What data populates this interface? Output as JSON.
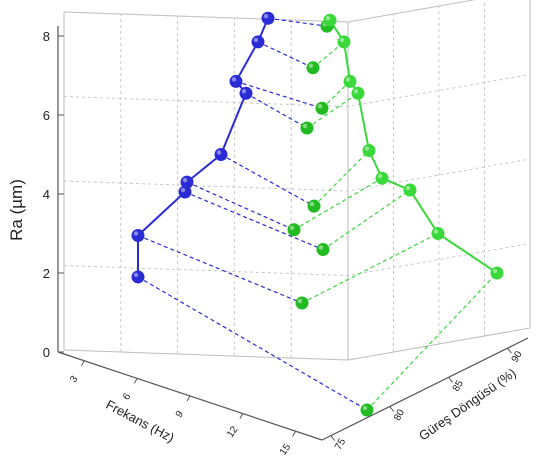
{
  "chart_data": {
    "type": "scatter3d",
    "zlabel": "Ra (µm)",
    "xlabel": "Frekans (Hz)",
    "ylabel": "Güreş Döngüsü (%)",
    "zlim": [
      0,
      8
    ],
    "z_ticks": [
      "0",
      "2",
      "4",
      "6",
      "8"
    ],
    "x_ticks": [
      "3",
      "6",
      "9",
      "12",
      "15"
    ],
    "y_ticks": [
      "75",
      "80",
      "85",
      "90"
    ],
    "grid": true,
    "series": [
      {
        "color": "#2b2bd6",
        "values": [
          8.45,
          7.85,
          6.85,
          6.55,
          5.0,
          4.3,
          4.05,
          2.95,
          1.9
        ]
      },
      {
        "color": "#3ad83a",
        "values": [
          8.4,
          7.85,
          6.85,
          6.55,
          5.1,
          4.4,
          4.1,
          3.0,
          2.0
        ]
      },
      {
        "color": "#22bb22",
        "values": [
          8.4,
          7.6,
          6.5,
          6.0,
          4.2,
          3.6,
          3.1,
          2.0,
          0.0
        ]
      }
    ]
  }
}
